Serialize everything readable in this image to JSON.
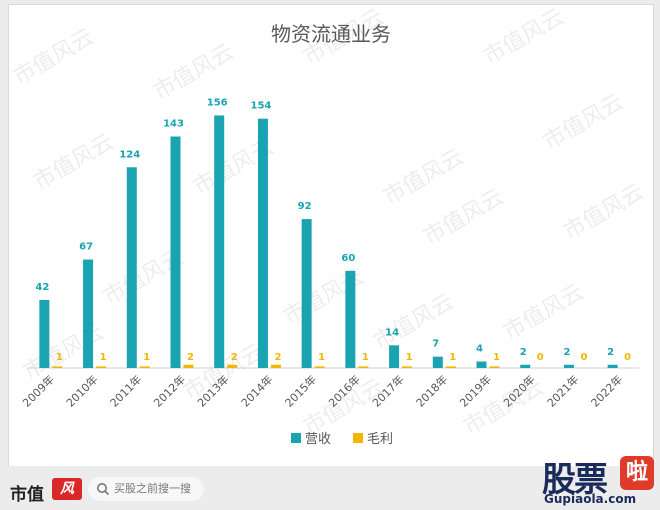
{
  "chart_data": {
    "type": "bar",
    "title": "物资流通业务",
    "categories": [
      "2009年",
      "2010年",
      "2011年",
      "2012年",
      "2013年",
      "2014年",
      "2015年",
      "2016年",
      "2017年",
      "2018年",
      "2019年",
      "2020年",
      "2021年",
      "2022年"
    ],
    "series": [
      {
        "name": "营收",
        "color": "#1aa3b0",
        "values": [
          42,
          67,
          124,
          143,
          156,
          154,
          92,
          60,
          14,
          7,
          4,
          2,
          2,
          2
        ]
      },
      {
        "name": "毛利",
        "color": "#f2b705",
        "values": [
          1,
          1,
          1,
          2,
          2,
          2,
          1,
          1,
          1,
          1,
          1,
          0,
          0,
          0
        ]
      }
    ],
    "ylim": [
      0,
      160
    ],
    "legend": "bottom",
    "grid": false
  },
  "watermark": "市值风云",
  "footer": {
    "logo": "市值",
    "search_placeholder": "买股之前搜一搜"
  },
  "brand": {
    "name": "股票",
    "badge": "啦",
    "url": "Gupiaola.com"
  }
}
